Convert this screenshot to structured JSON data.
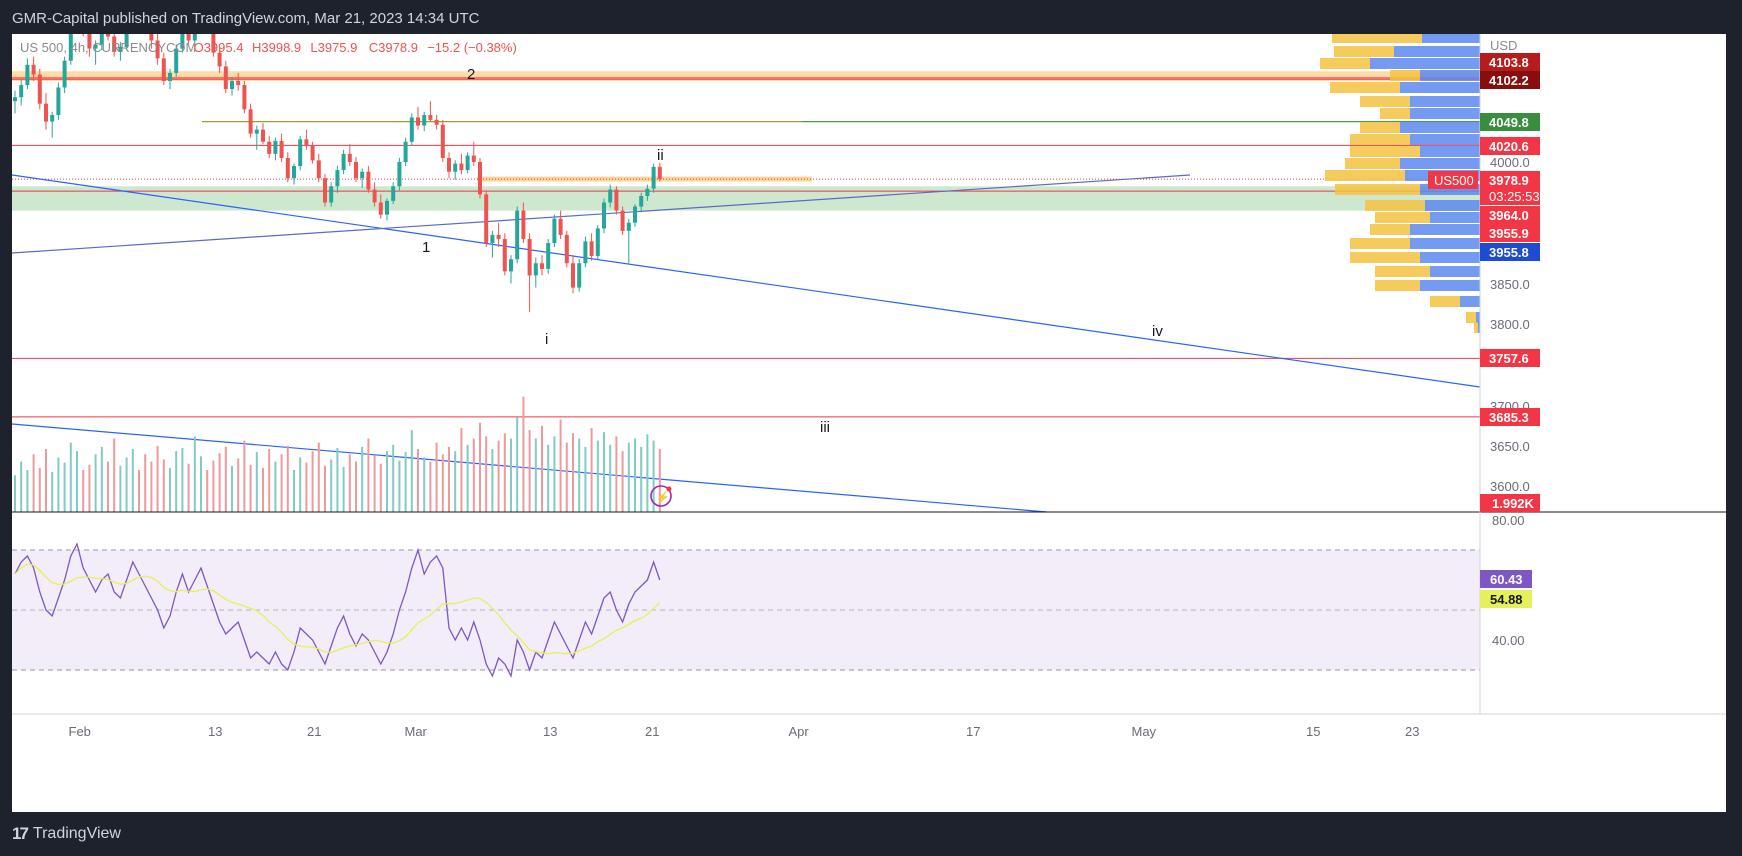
{
  "header": {
    "published": "GMR-Capital published on TradingView.com, Mar 21, 2023 14:34 UTC"
  },
  "legend": {
    "symbol": "US 500, 4h, CURRENCYCOM",
    "open": "O3995.4",
    "high": "H3998.9",
    "low": "L3975.9",
    "close": "C3978.9",
    "change": "−15.2 (−0.38%)"
  },
  "footer": {
    "brand": "TradingView"
  },
  "colors": {
    "up": "#26a69a",
    "down": "#ef5350",
    "level_red": "#f23645",
    "trendline": "#2962ff",
    "rsi": "#7e57c2",
    "rsi_ma": "#e6f05a",
    "zone_green": "#a5d6a7",
    "zone_orange": "#ffcc80"
  },
  "chart_data": {
    "type": "candlestick",
    "symbol": "US500",
    "interval": "4h",
    "currency": "USD",
    "x_axis_labels": [
      "Feb",
      "13",
      "21",
      "Mar",
      "13",
      "21",
      "Apr",
      "17",
      "May",
      "15",
      "23"
    ],
    "price_axis_ticks": [
      "4000.0",
      "3850.0",
      "3800.0",
      "3700.0",
      "3650.0",
      "3600.0"
    ],
    "price_labels": [
      {
        "value": "4103.8",
        "color": "#b71c1c"
      },
      {
        "value": "4102.2",
        "color": "#880e0e"
      },
      {
        "value": "4049.8",
        "color": "#388e3c"
      },
      {
        "value": "4020.6",
        "color": "#f23645"
      },
      {
        "value": "3978.9",
        "color": "#f23645",
        "tag": "US500",
        "countdown": "03:25:53"
      },
      {
        "value": "3964.0",
        "color": "#f23645"
      },
      {
        "value": "3955.9",
        "color": "#f23645"
      },
      {
        "value": "3955.8",
        "color": "#1e4bd1"
      },
      {
        "value": "3757.6",
        "color": "#f23645"
      },
      {
        "value": "3685.3",
        "color": "#f23645"
      }
    ],
    "volume_label": "1.992K",
    "wave_labels": [
      "2",
      "1",
      "i",
      "ii",
      "iii",
      "iv"
    ],
    "rsi": {
      "value": "60.43",
      "ma_value": "54.88",
      "axis_ticks": [
        "80.00",
        "40.00"
      ],
      "upper_band": 70,
      "lower_band": 30
    },
    "candles": [
      [
        4075,
        4088,
        4060,
        4080
      ],
      [
        4080,
        4102,
        4070,
        4095
      ],
      [
        4095,
        4128,
        4090,
        4120
      ],
      [
        4120,
        4130,
        4100,
        4108
      ],
      [
        4108,
        4115,
        4065,
        4072
      ],
      [
        4072,
        4085,
        4040,
        4050
      ],
      [
        4050,
        4062,
        4030,
        4058
      ],
      [
        4058,
        4098,
        4052,
        4092
      ],
      [
        4092,
        4130,
        4085,
        4125
      ],
      [
        4125,
        4180,
        4120,
        4175
      ],
      [
        4175,
        4195,
        4165,
        4185
      ],
      [
        4185,
        4190,
        4155,
        4160
      ],
      [
        4160,
        4168,
        4130,
        4140
      ],
      [
        4140,
        4150,
        4120,
        4145
      ],
      [
        4145,
        4170,
        4138,
        4165
      ],
      [
        4165,
        4178,
        4150,
        4155
      ],
      [
        4155,
        4158,
        4130,
        4136
      ],
      [
        4136,
        4148,
        4125,
        4142
      ],
      [
        4142,
        4172,
        4138,
        4168
      ],
      [
        4168,
        4205,
        4160,
        4198
      ],
      [
        4198,
        4210,
        4180,
        4185
      ],
      [
        4185,
        4190,
        4158,
        4162
      ],
      [
        4162,
        4170,
        4140,
        4150
      ],
      [
        4150,
        4158,
        4120,
        4128
      ],
      [
        4128,
        4135,
        4095,
        4100
      ],
      [
        4100,
        4115,
        4090,
        4110
      ],
      [
        4110,
        4145,
        4105,
        4140
      ],
      [
        4140,
        4175,
        4135,
        4170
      ],
      [
        4170,
        4180,
        4145,
        4150
      ],
      [
        4150,
        4172,
        4142,
        4168
      ],
      [
        4168,
        4190,
        4160,
        4185
      ],
      [
        4185,
        4195,
        4160,
        4165
      ],
      [
        4165,
        4170,
        4130,
        4135
      ],
      [
        4135,
        4142,
        4110,
        4118
      ],
      [
        4118,
        4125,
        4085,
        4090
      ],
      [
        4090,
        4105,
        4082,
        4100
      ],
      [
        4100,
        4110,
        4088,
        4095
      ],
      [
        4095,
        4100,
        4060,
        4065
      ],
      [
        4065,
        4072,
        4030,
        4035
      ],
      [
        4035,
        4045,
        4015,
        4040
      ],
      [
        4040,
        4048,
        4022,
        4025
      ],
      [
        4025,
        4032,
        4005,
        4010
      ],
      [
        4010,
        4030,
        4002,
        4026
      ],
      [
        4026,
        4035,
        4000,
        4005
      ],
      [
        4005,
        4012,
        3975,
        3980
      ],
      [
        3980,
        3998,
        3972,
        3995
      ],
      [
        3995,
        4032,
        3990,
        4028
      ],
      [
        4028,
        4040,
        4015,
        4020
      ],
      [
        4020,
        4025,
        3998,
        4002
      ],
      [
        4002,
        4010,
        3975,
        3980
      ],
      [
        3980,
        3985,
        3945,
        3950
      ],
      [
        3950,
        3975,
        3945,
        3970
      ],
      [
        3970,
        3995,
        3962,
        3990
      ],
      [
        3990,
        4015,
        3985,
        4010
      ],
      [
        4010,
        4022,
        3995,
        4000
      ],
      [
        4000,
        4006,
        3975,
        3980
      ],
      [
        3980,
        3992,
        3968,
        3988
      ],
      [
        3988,
        3995,
        3962,
        3966
      ],
      [
        3966,
        3975,
        3945,
        3950
      ],
      [
        3950,
        3960,
        3930,
        3935
      ],
      [
        3935,
        3955,
        3928,
        3952
      ],
      [
        3952,
        3975,
        3948,
        3970
      ],
      [
        3970,
        4005,
        3965,
        4000
      ],
      [
        4000,
        4030,
        3995,
        4025
      ],
      [
        4025,
        4060,
        4020,
        4055
      ],
      [
        4055,
        4068,
        4040,
        4045
      ],
      [
        4045,
        4062,
        4038,
        4058
      ],
      [
        4058,
        4075,
        4050,
        4052
      ],
      [
        4052,
        4058,
        4040,
        4046
      ],
      [
        4046,
        4052,
        4000,
        4005
      ],
      [
        4005,
        4012,
        3980,
        3988
      ],
      [
        3988,
        4002,
        3978,
        3998
      ],
      [
        3998,
        4010,
        3985,
        3990
      ],
      [
        3990,
        4012,
        3986,
        4008
      ],
      [
        4008,
        4025,
        3995,
        4000
      ],
      [
        4000,
        4005,
        3955,
        3960
      ],
      [
        3960,
        3965,
        3895,
        3900
      ],
      [
        3900,
        3915,
        3882,
        3910
      ],
      [
        3910,
        3925,
        3895,
        3905
      ],
      [
        3905,
        3912,
        3860,
        3865
      ],
      [
        3865,
        3885,
        3850,
        3880
      ],
      [
        3880,
        3945,
        3875,
        3940
      ],
      [
        3940,
        3950,
        3900,
        3905
      ],
      [
        3905,
        3912,
        3815,
        3860
      ],
      [
        3860,
        3882,
        3845,
        3875
      ],
      [
        3875,
        3885,
        3860,
        3868
      ],
      [
        3868,
        3905,
        3862,
        3900
      ],
      [
        3900,
        3935,
        3895,
        3930
      ],
      [
        3930,
        3940,
        3905,
        3910
      ],
      [
        3910,
        3915,
        3870,
        3875
      ],
      [
        3875,
        3885,
        3838,
        3845
      ],
      [
        3845,
        3880,
        3840,
        3875
      ],
      [
        3875,
        3908,
        3870,
        3902
      ],
      [
        3902,
        3912,
        3878,
        3884
      ],
      [
        3884,
        3922,
        3880,
        3918
      ],
      [
        3918,
        3955,
        3912,
        3950
      ],
      [
        3950,
        3972,
        3944,
        3966
      ],
      [
        3966,
        3970,
        3935,
        3940
      ],
      [
        3940,
        3945,
        3910,
        3915
      ],
      [
        3915,
        3930,
        3875,
        3925
      ],
      [
        3925,
        3948,
        3920,
        3945
      ],
      [
        3945,
        3962,
        3938,
        3958
      ],
      [
        3958,
        3972,
        3952,
        3967
      ],
      [
        3967,
        3998,
        3962,
        3994
      ],
      [
        3994,
        3999,
        3976,
        3979
      ]
    ],
    "rsi_values": [
      62,
      66,
      68,
      64,
      56,
      50,
      48,
      54,
      60,
      68,
      72,
      64,
      60,
      56,
      60,
      62,
      56,
      54,
      60,
      66,
      62,
      58,
      54,
      50,
      44,
      48,
      56,
      62,
      56,
      60,
      64,
      58,
      52,
      46,
      42,
      44,
      46,
      40,
      34,
      36,
      34,
      32,
      36,
      32,
      30,
      36,
      44,
      42,
      40,
      36,
      32,
      38,
      44,
      48,
      42,
      38,
      42,
      40,
      36,
      32,
      36,
      42,
      50,
      56,
      64,
      70,
      62,
      66,
      68,
      64,
      44,
      40,
      44,
      40,
      46,
      40,
      32,
      28,
      34,
      32,
      28,
      40,
      36,
      30,
      36,
      34,
      40,
      46,
      42,
      38,
      34,
      40,
      46,
      42,
      48,
      54,
      56,
      50,
      46,
      52,
      56,
      58,
      60,
      66,
      60
    ],
    "volume_values": [
      35,
      48,
      40,
      55,
      42,
      60,
      38,
      52,
      47,
      66,
      58,
      40,
      45,
      55,
      62,
      48,
      70,
      44,
      52,
      60,
      40,
      55,
      48,
      63,
      50,
      42,
      58,
      61,
      46,
      72,
      53,
      40,
      49,
      56,
      62,
      44,
      51,
      68,
      45,
      57,
      42,
      60,
      48,
      55,
      63,
      40,
      52,
      47,
      58,
      66,
      44,
      50,
      61,
      43,
      55,
      48,
      62,
      70,
      54,
      46,
      58,
      64,
      49,
      57,
      78,
      60,
      52,
      48,
      66,
      55,
      62,
      58,
      80,
      64,
      70,
      85,
      72,
      60,
      68,
      75,
      70,
      90,
      110,
      78,
      70,
      82,
      64,
      72,
      88,
      66,
      75,
      70,
      62,
      80,
      68,
      76,
      64,
      72,
      58,
      66,
      70,
      62,
      74,
      68,
      60
    ]
  }
}
